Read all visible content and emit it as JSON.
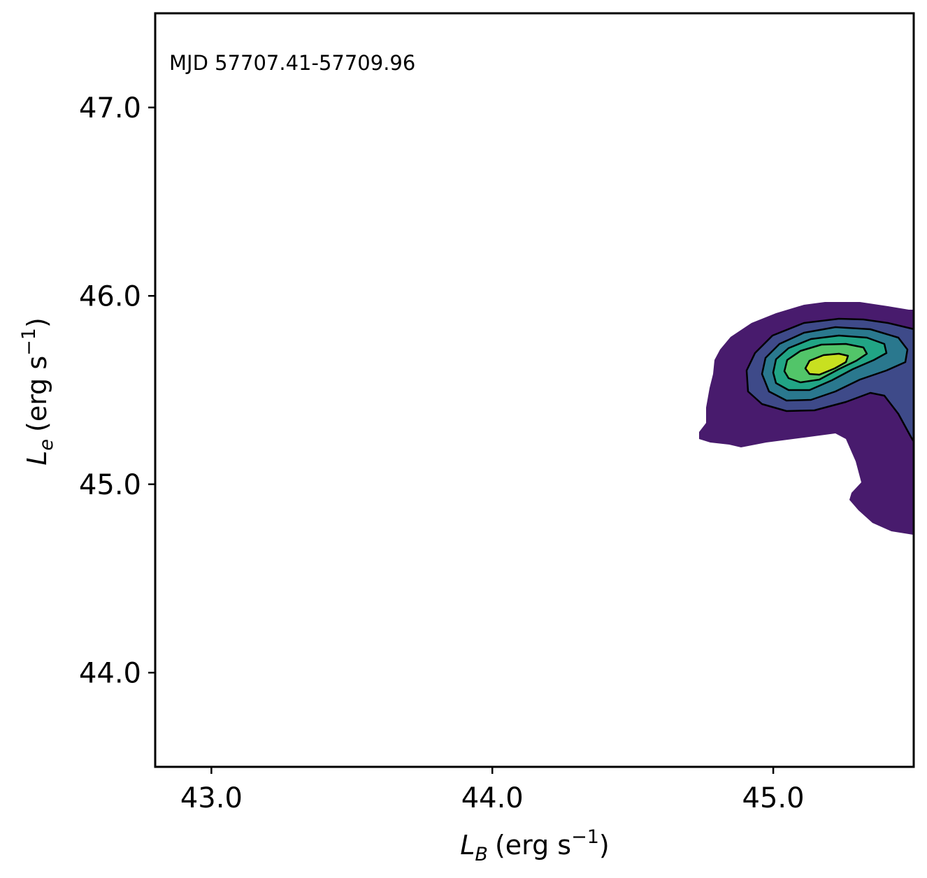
{
  "chart_data": {
    "type": "contour",
    "annotation": "MJD 57707.41-57709.96",
    "xlabel": {
      "symbol": "L",
      "subscript": "B",
      "unit_prefix": "(erg s",
      "unit_exp": "−1",
      "unit_suffix": ")"
    },
    "ylabel": {
      "symbol": "L",
      "subscript": "e",
      "unit_prefix": "(erg s",
      "unit_exp": "−1",
      "unit_suffix": ")"
    },
    "xlim": [
      42.8,
      45.5
    ],
    "ylim": [
      43.5,
      47.5
    ],
    "x_ticks": [
      43.0,
      44.0,
      45.0
    ],
    "y_ticks": [
      44.0,
      45.0,
      46.0,
      47.0
    ],
    "x_tick_labels": [
      "43.0",
      "44.0",
      "45.0"
    ],
    "y_tick_labels": [
      "44.0",
      "45.0",
      "46.0",
      "47.0"
    ],
    "density_peak": {
      "x": 45.18,
      "y": 45.64
    },
    "colormap": [
      "#481b6d",
      "#3e4a89",
      "#2a788e",
      "#21a585",
      "#52c569",
      "#c8e020"
    ],
    "contour_line_color": "#000000",
    "grid": false,
    "legend": "none"
  }
}
